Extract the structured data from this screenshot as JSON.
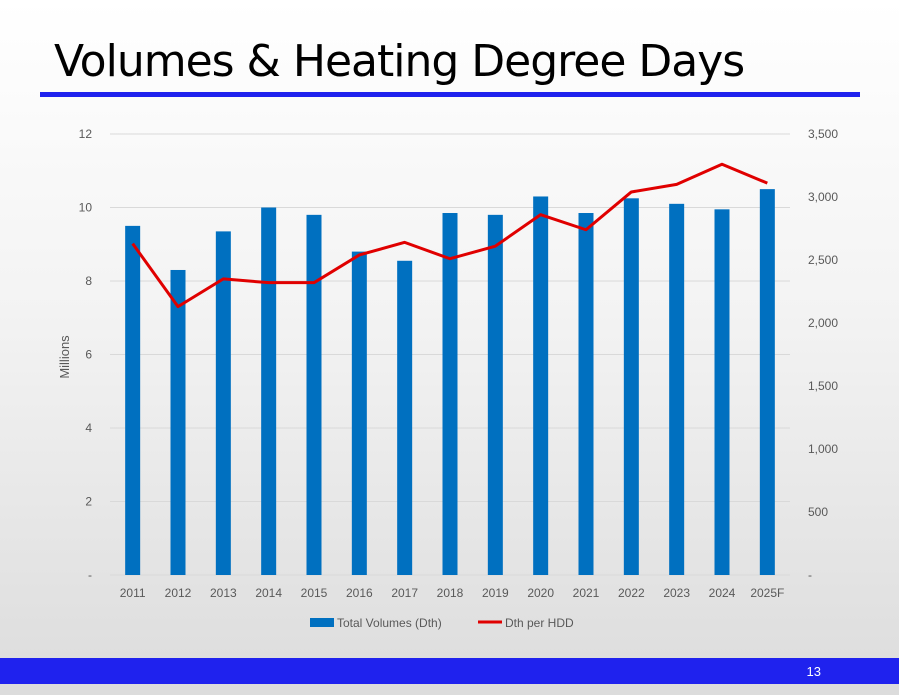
{
  "slide": {
    "title": "Volumes & Heating Degree Days",
    "page_number": "13"
  },
  "colors": {
    "accent_bar": "#1f22ee",
    "bar": "#0070c0",
    "line": "#e00000",
    "grid": "#d9d9d9",
    "axis_text": "#595959"
  },
  "chart_data": {
    "type": "bar",
    "title": "",
    "categories": [
      "2011",
      "2012",
      "2013",
      "2014",
      "2015",
      "2016",
      "2017",
      "2018",
      "2019",
      "2020",
      "2021",
      "2022",
      "2023",
      "2024",
      "2025F"
    ],
    "y_left": {
      "label": "Millions",
      "range": [
        0,
        12
      ],
      "ticks": [
        0,
        2,
        4,
        6,
        8,
        10,
        12
      ],
      "tick_labels": [
        "-",
        "2",
        "4",
        "6",
        "8",
        "10",
        "12"
      ]
    },
    "y_right": {
      "range": [
        0,
        3500
      ],
      "ticks": [
        0,
        500,
        1000,
        1500,
        2000,
        2500,
        3000,
        3500
      ],
      "tick_labels": [
        "-",
        "500",
        "1,000",
        "1,500",
        "2,000",
        "2,500",
        "3,000",
        "3,500"
      ]
    },
    "grid": true,
    "legend_position": "bottom",
    "series": [
      {
        "name": "Total Volumes (Dth)",
        "type": "bar",
        "axis": "left",
        "values": [
          9.5,
          8.3,
          9.35,
          10.0,
          9.8,
          8.8,
          8.55,
          9.85,
          9.8,
          10.3,
          9.85,
          10.25,
          10.1,
          9.95,
          10.5
        ]
      },
      {
        "name": "Dth per HDD",
        "type": "line",
        "axis": "right",
        "values": [
          2630,
          2130,
          2350,
          2320,
          2320,
          2540,
          2640,
          2510,
          2610,
          2860,
          2740,
          3040,
          3100,
          3260,
          3110
        ]
      }
    ]
  }
}
